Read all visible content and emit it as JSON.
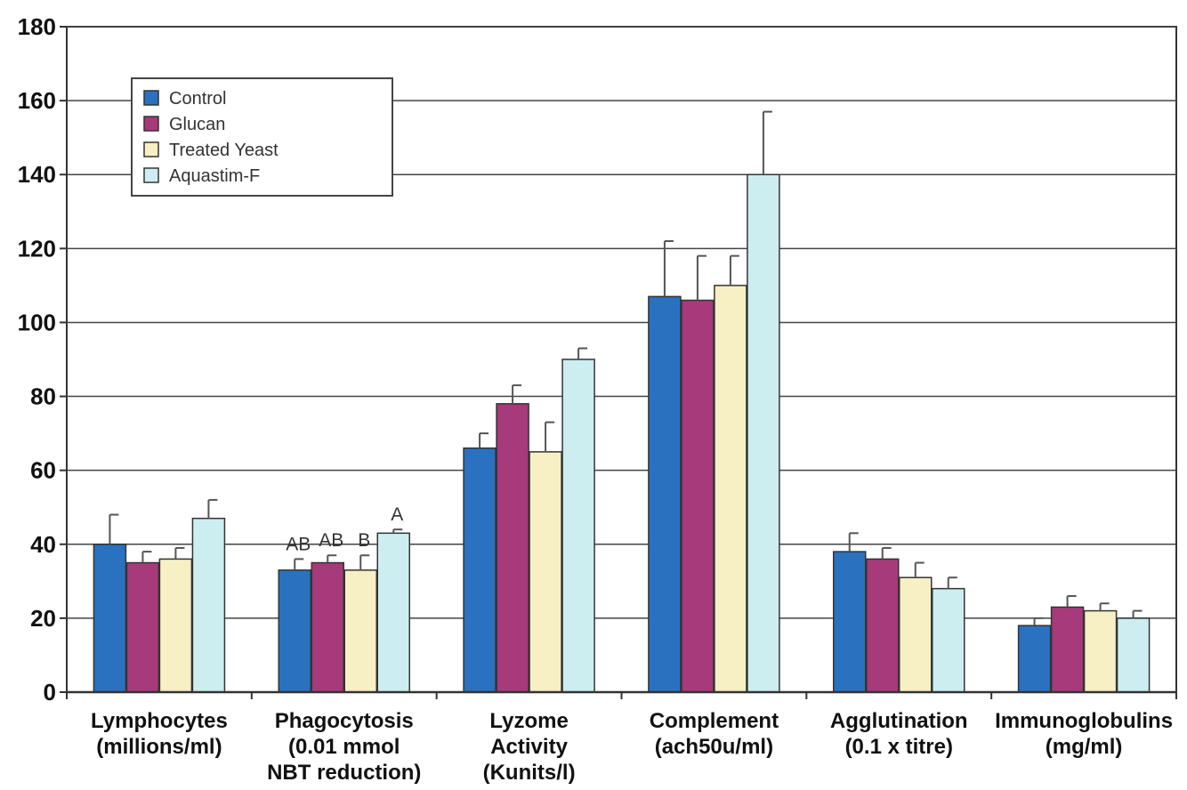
{
  "chart_data": {
    "type": "bar",
    "title": "",
    "xlabel": "",
    "ylabel": "",
    "ylim": [
      0,
      180
    ],
    "yticks": [
      0,
      20,
      40,
      60,
      80,
      100,
      120,
      140,
      160,
      180
    ],
    "grid": true,
    "legend_position": "top-left",
    "categories": [
      [
        "Lymphocytes",
        "(millions/ml)"
      ],
      [
        "Phagocytosis",
        "(0.01 mmol",
        "NBT reduction)"
      ],
      [
        "Lyzome",
        "Activity",
        "(Kunits/l)"
      ],
      [
        "Complement",
        "(ach50u/ml)"
      ],
      [
        "Agglutination",
        "(0.1 x titre)"
      ],
      [
        "Immunoglobulins",
        "(mg/ml)"
      ]
    ],
    "series": [
      {
        "name": "Control",
        "color": "#2a72c0",
        "values": [
          40,
          33,
          66,
          107,
          38,
          18
        ],
        "errors": [
          8,
          3,
          4,
          15,
          5,
          2
        ]
      },
      {
        "name": "Glucan",
        "color": "#a63a7a",
        "values": [
          35,
          35,
          78,
          106,
          36,
          23
        ],
        "errors": [
          3,
          2,
          5,
          12,
          3,
          3
        ]
      },
      {
        "name": "Treated Yeast",
        "color": "#f7f0c4",
        "values": [
          36,
          33,
          65,
          110,
          31,
          22
        ],
        "errors": [
          3,
          4,
          8,
          8,
          4,
          2
        ]
      },
      {
        "name": "Aquastim-F",
        "color": "#cdeef0",
        "values": [
          47,
          43,
          90,
          140,
          28,
          20
        ],
        "errors": [
          5,
          1,
          3,
          17,
          3,
          2
        ]
      }
    ],
    "annotations": [
      {
        "category": 1,
        "series": 0,
        "text": "AB"
      },
      {
        "category": 1,
        "series": 1,
        "text": "AB"
      },
      {
        "category": 1,
        "series": 2,
        "text": "B"
      },
      {
        "category": 1,
        "series": 3,
        "text": "A"
      }
    ]
  }
}
